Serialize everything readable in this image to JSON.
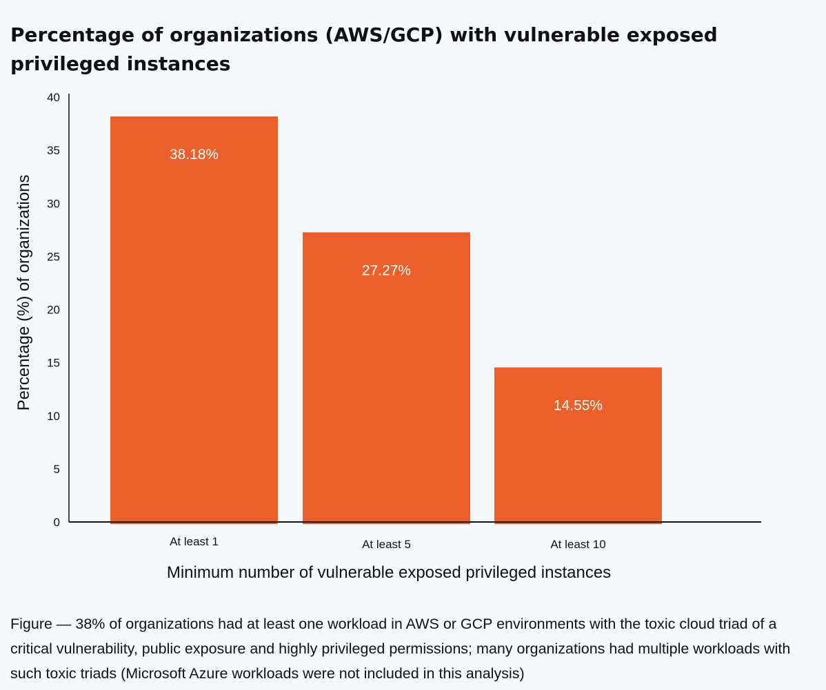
{
  "chart_data": {
    "type": "bar",
    "title": "Percentage of organizations (AWS/GCP) with vulnerable exposed privileged instances",
    "xlabel": "Minimum number of vulnerable exposed privileged instances",
    "ylabel": "Percentage (%) of organizations",
    "categories": [
      "At least 1",
      "At least 5",
      "At least 10"
    ],
    "values": [
      38.18,
      27.27,
      14.55
    ],
    "data_labels": [
      "38.18%",
      "27.27%",
      "14.55%"
    ],
    "ylim": [
      0,
      40
    ],
    "yticks": [
      0,
      5,
      10,
      15,
      20,
      25,
      30,
      35,
      40
    ],
    "grid": false,
    "legend": "none",
    "bar_color": "#ec5f2b",
    "label_color": "#ffffff"
  },
  "caption": "Figure — 38% of organizations had at least one workload in AWS or GCP environments with the toxic cloud triad of a critical vulnerability, public exposure and highly privileged permissions; many organizations had multiple workloads with such toxic triads (Microsoft Azure workloads were not included in this analysis)"
}
